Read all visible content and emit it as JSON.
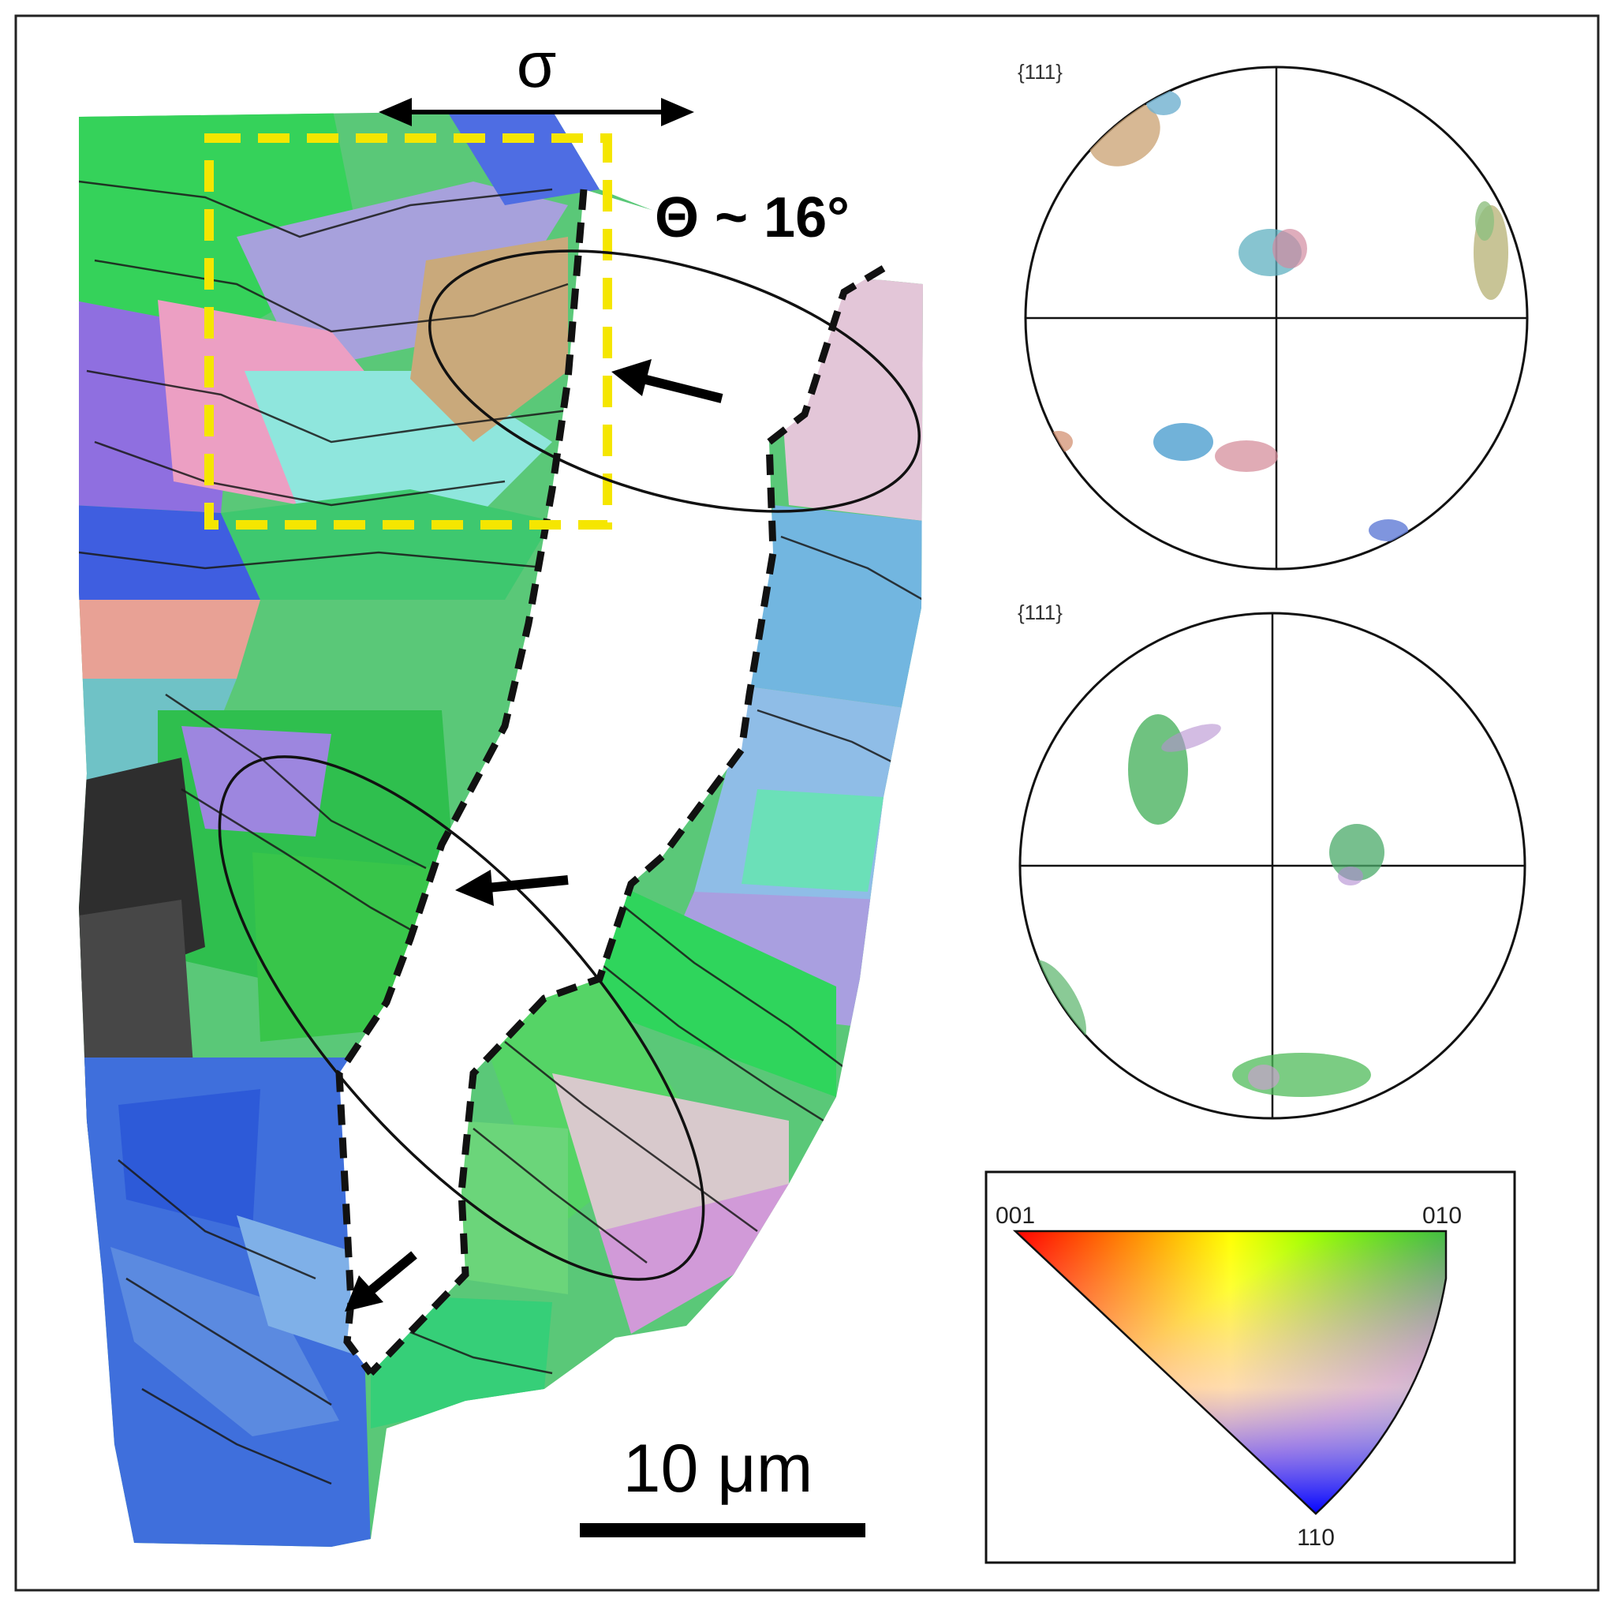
{
  "figure": {
    "stress_label": "σ",
    "angle_label": "Θ ~ 16°",
    "scale_bar_label": "10 μm",
    "pole_figure_top_label": "{111}",
    "pole_figure_bottom_label": "{111}",
    "ipf_key": {
      "corner_left": "001",
      "corner_right": "010",
      "corner_bottom": "110"
    },
    "colors": {
      "frame": "#222222",
      "roi_box": "#f5e600",
      "crack_outline": "#111111",
      "ipf_red": "#ff0000",
      "ipf_green": "#00ff00",
      "ipf_blue": "#0000ff"
    },
    "icons": [
      "double-arrow-icon",
      "arrow-icon"
    ]
  }
}
